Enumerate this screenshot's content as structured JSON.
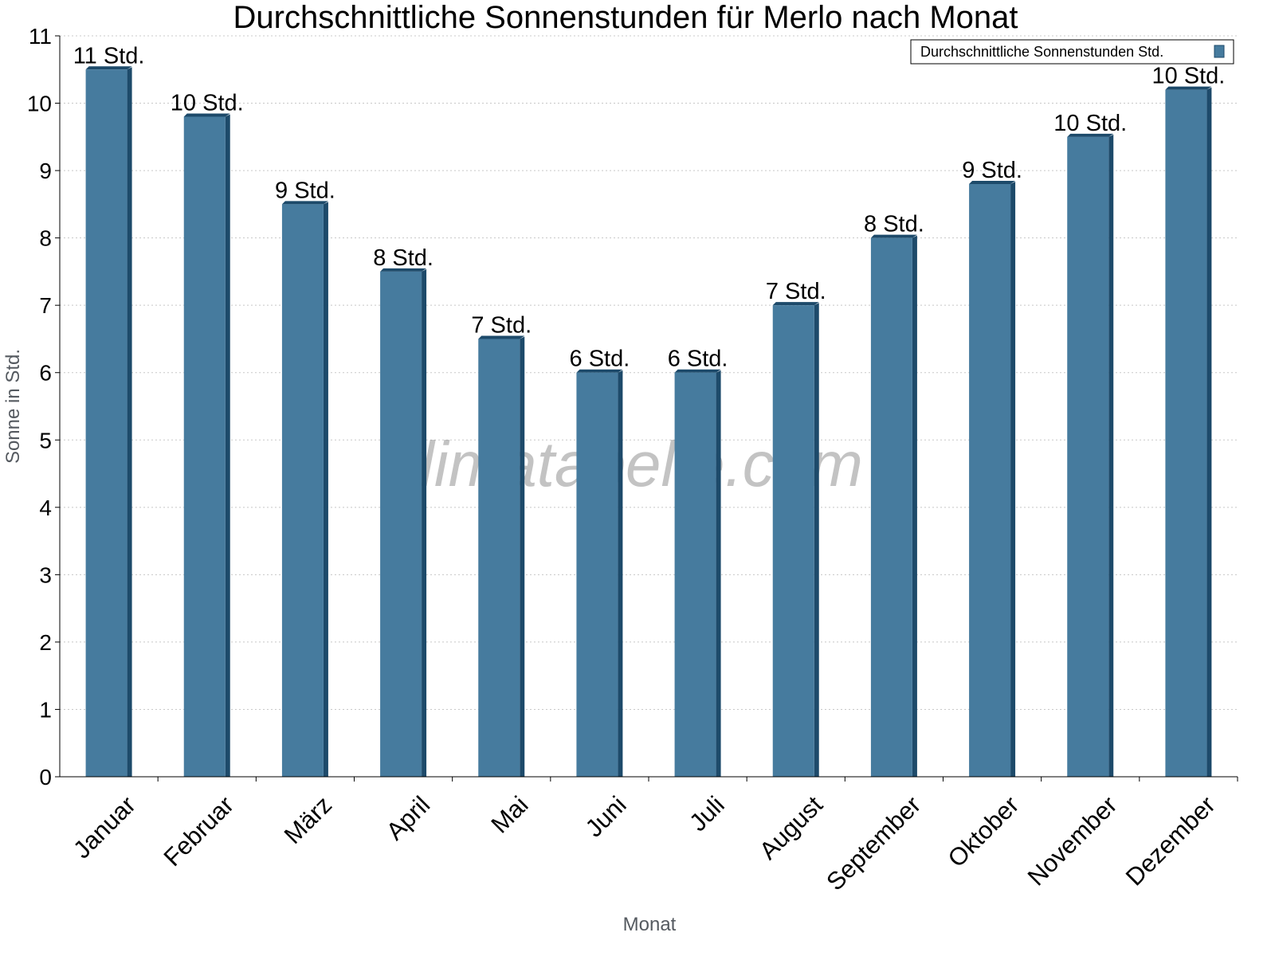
{
  "chart_data": {
    "type": "bar",
    "title": "Durchschnittliche Sonnenstunden für Merlo nach Monat",
    "xlabel": "Monat",
    "ylabel": "Sonne in Std.",
    "ylim": [
      0,
      11
    ],
    "yticks": [
      0,
      1,
      2,
      3,
      4,
      5,
      6,
      7,
      8,
      9,
      10,
      11
    ],
    "grid": true,
    "legend_position": "top-right",
    "categories": [
      "Januar",
      "Februar",
      "März",
      "April",
      "Mai",
      "Juni",
      "Juli",
      "August",
      "September",
      "Oktober",
      "November",
      "Dezember"
    ],
    "series": [
      {
        "name": "Durchschnittliche Sonnenstunden Std.",
        "values": [
          10.5,
          9.8,
          8.5,
          7.5,
          6.5,
          6.0,
          6.0,
          7.0,
          8.0,
          8.8,
          9.5,
          10.2
        ],
        "labels": [
          "11 Std.",
          "10 Std.",
          "9 Std.",
          "8 Std.",
          "7 Std.",
          "6 Std.",
          "6 Std.",
          "7 Std.",
          "8 Std.",
          "9 Std.",
          "10 Std.",
          "10 Std."
        ]
      }
    ],
    "colors": {
      "bar": "#467b9e",
      "bar_side": "#1d4a6a"
    },
    "watermark": "klimatabelle.com"
  }
}
